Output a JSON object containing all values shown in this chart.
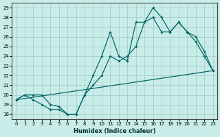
{
  "xlabel": "Humidex (Indice chaleur)",
  "bg_color": "#c8ece8",
  "grid_color": "#a0c8c8",
  "line_color": "#006868",
  "xlim": [
    -0.5,
    23.5
  ],
  "ylim": [
    17.5,
    29.5
  ],
  "xticks": [
    0,
    1,
    2,
    3,
    4,
    5,
    6,
    7,
    8,
    9,
    10,
    11,
    12,
    13,
    14,
    15,
    16,
    17,
    18,
    19,
    20,
    21,
    22,
    23
  ],
  "yticks": [
    18,
    19,
    20,
    21,
    22,
    23,
    24,
    25,
    26,
    27,
    28,
    29
  ],
  "line1_x": [
    0,
    1,
    2,
    3,
    4,
    5,
    6,
    7,
    8,
    9,
    10,
    11,
    12,
    13,
    14,
    15,
    16,
    17,
    18,
    19,
    20,
    21,
    22,
    23
  ],
  "line1_y": [
    19.5,
    20,
    20,
    20,
    19,
    18.8,
    18,
    18,
    20,
    22,
    24,
    26.5,
    24,
    23.5,
    27.5,
    27.5,
    29,
    28,
    26.5,
    27.5,
    26.5,
    26,
    24.5,
    22.5
  ],
  "line2_x": [
    0,
    1,
    2,
    3,
    4,
    5,
    6,
    7,
    8,
    9,
    10,
    11,
    12,
    13,
    14,
    15,
    16,
    17,
    18,
    19,
    20,
    21,
    22,
    23
  ],
  "line2_y": [
    19.5,
    20,
    19.5,
    19,
    18.5,
    18.5,
    18,
    18,
    20,
    21,
    22,
    24,
    23.5,
    24,
    25,
    27.5,
    28,
    26.5,
    26.5,
    27.5,
    26.5,
    25.5,
    24,
    22.5
  ],
  "line3_x": [
    0,
    23
  ],
  "line3_y": [
    19.5,
    22.5
  ]
}
